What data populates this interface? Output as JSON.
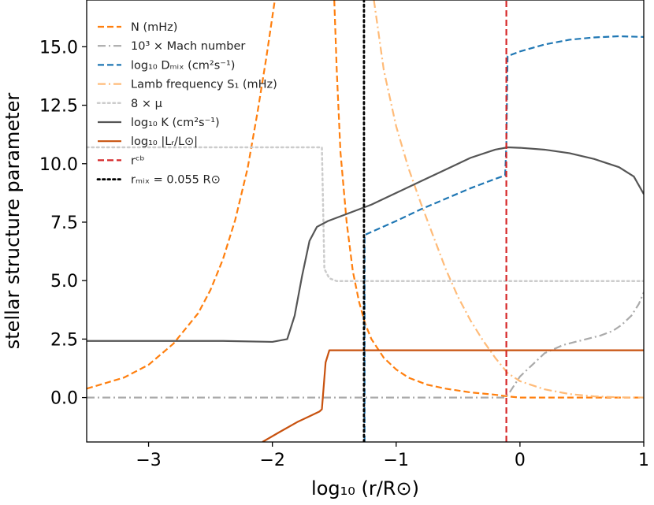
{
  "chart_data": {
    "type": "line",
    "xlabel": "log₁₀ (r/R⊙)",
    "ylabel": "stellar structure parameter",
    "xlim": [
      -3.5,
      1
    ],
    "ylim": [
      -1.9,
      17
    ],
    "xticks": [
      -3,
      -2,
      -1,
      0,
      1
    ],
    "xtick_labels": [
      "−3",
      "−2",
      "−1",
      "0",
      "1"
    ],
    "yticks": [
      0.0,
      2.5,
      5.0,
      7.5,
      10.0,
      12.5,
      15.0
    ],
    "ytick_labels": [
      "0.0",
      "2.5",
      "5.0",
      "7.5",
      "10.0",
      "12.5",
      "15.0"
    ],
    "legend_position": "top-left",
    "series": [
      {
        "name": "N (mHz)",
        "legend_label": "N (mHz)",
        "color": "#ff7f0e",
        "style": "dashed",
        "width": 2.2,
        "segments": [
          [
            [
              -3.5,
              0.38
            ],
            [
              -3.2,
              0.85
            ],
            [
              -3.0,
              1.4
            ],
            [
              -2.8,
              2.3
            ],
            [
              -2.6,
              3.6
            ],
            [
              -2.5,
              4.6
            ],
            [
              -2.4,
              5.9
            ],
            [
              -2.3,
              7.6
            ],
            [
              -2.2,
              9.8
            ],
            [
              -2.12,
              12.2
            ],
            [
              -2.05,
              14.5
            ],
            [
              -1.98,
              17.0
            ]
          ],
          [
            [
              -1.5,
              17.0
            ],
            [
              -1.48,
              14.0
            ],
            [
              -1.45,
              10.5
            ],
            [
              -1.4,
              7.5
            ],
            [
              -1.35,
              5.4
            ],
            [
              -1.3,
              4.1
            ],
            [
              -1.25,
              3.15
            ],
            [
              -1.2,
              2.5
            ],
            [
              -1.1,
              1.7
            ],
            [
              -1.0,
              1.2
            ],
            [
              -0.9,
              0.85
            ],
            [
              -0.75,
              0.55
            ],
            [
              -0.6,
              0.38
            ],
            [
              -0.4,
              0.22
            ],
            [
              -0.2,
              0.12
            ],
            [
              -0.1,
              0.05
            ],
            [
              0.0,
              0.0
            ],
            [
              1.0,
              0.0
            ]
          ]
        ]
      },
      {
        "name": "10^3 x Mach number",
        "legend_label": "10³ × Mach number",
        "color": "#aaaaaa",
        "style": "dashdot",
        "width": 2.2,
        "segments": [
          [
            [
              -3.5,
              0.0
            ],
            [
              -0.12,
              0.0
            ],
            [
              -0.08,
              0.25
            ],
            [
              0.0,
              0.9
            ],
            [
              0.1,
              1.4
            ],
            [
              0.2,
              1.9
            ],
            [
              0.35,
              2.25
            ],
            [
              0.5,
              2.45
            ],
            [
              0.65,
              2.65
            ],
            [
              0.75,
              2.85
            ],
            [
              0.82,
              3.1
            ],
            [
              0.9,
              3.5
            ],
            [
              0.96,
              4.0
            ],
            [
              1.0,
              4.5
            ]
          ]
        ]
      },
      {
        "name": "log10 Dmix (cm2 s-1)",
        "legend_label": "log₁₀ Dₘᵢₓ (cm²s⁻¹)",
        "color": "#1f77b4",
        "style": "dashed",
        "width": 2.2,
        "segments": [
          [
            [
              -1.255,
              -1.9
            ],
            [
              -1.255,
              6.95
            ],
            [
              -1.0,
              7.55
            ],
            [
              -0.8,
              8.05
            ],
            [
              -0.6,
              8.5
            ],
            [
              -0.4,
              8.95
            ],
            [
              -0.2,
              9.35
            ],
            [
              -0.12,
              9.5
            ],
            [
              -0.11,
              10.8
            ],
            [
              -0.1,
              14.6
            ],
            [
              0.0,
              14.8
            ],
            [
              0.2,
              15.1
            ],
            [
              0.4,
              15.3
            ],
            [
              0.6,
              15.4
            ],
            [
              0.8,
              15.45
            ],
            [
              1.0,
              15.42
            ]
          ]
        ]
      },
      {
        "name": "Lamb frequency S1 (mHz)",
        "legend_label": "Lamb frequency S₁ (mHz)",
        "color": "#ffbb78",
        "style": "dashdot",
        "width": 2.2,
        "segments": [
          [
            [
              -1.18,
              17.0
            ],
            [
              -1.1,
              14.0
            ],
            [
              -1.0,
              11.6
            ],
            [
              -0.9,
              9.8
            ],
            [
              -0.8,
              8.3
            ],
            [
              -0.7,
              6.9
            ],
            [
              -0.6,
              5.5
            ],
            [
              -0.5,
              4.3
            ],
            [
              -0.4,
              3.3
            ],
            [
              -0.3,
              2.45
            ],
            [
              -0.2,
              1.7
            ],
            [
              -0.1,
              1.05
            ],
            [
              0.0,
              0.7
            ],
            [
              0.2,
              0.35
            ],
            [
              0.4,
              0.15
            ],
            [
              0.6,
              0.05
            ],
            [
              0.8,
              0.01
            ],
            [
              1.0,
              0.0
            ]
          ]
        ]
      },
      {
        "name": "8 x mu",
        "legend_label": "8 × μ",
        "color": "#cccccc",
        "style": "dotted",
        "width": 2.5,
        "segments": [
          [
            [
              -3.5,
              10.7
            ],
            [
              -1.6,
              10.7
            ],
            [
              -1.58,
              5.5
            ],
            [
              -1.54,
              5.1
            ],
            [
              -1.48,
              4.98
            ],
            [
              1.0,
              4.98
            ]
          ]
        ]
      },
      {
        "name": "log10 K (cm2 s-1)",
        "legend_label": "log₁₀ K (cm²s⁻¹)",
        "color": "#555555",
        "style": "solid",
        "width": 2.2,
        "segments": [
          [
            [
              -3.5,
              2.42
            ],
            [
              -2.4,
              2.42
            ],
            [
              -2.0,
              2.38
            ],
            [
              -1.88,
              2.5
            ],
            [
              -1.82,
              3.5
            ],
            [
              -1.76,
              5.2
            ],
            [
              -1.7,
              6.7
            ],
            [
              -1.64,
              7.3
            ],
            [
              -1.55,
              7.55
            ],
            [
              -1.4,
              7.85
            ],
            [
              -1.2,
              8.25
            ],
            [
              -1.0,
              8.75
            ],
            [
              -0.8,
              9.25
            ],
            [
              -0.6,
              9.75
            ],
            [
              -0.4,
              10.25
            ],
            [
              -0.2,
              10.6
            ],
            [
              -0.1,
              10.7
            ],
            [
              0.0,
              10.68
            ],
            [
              0.2,
              10.6
            ],
            [
              0.4,
              10.45
            ],
            [
              0.6,
              10.2
            ],
            [
              0.8,
              9.85
            ],
            [
              0.92,
              9.45
            ],
            [
              1.0,
              8.7
            ]
          ]
        ]
      },
      {
        "name": "log10 |Lr/Lsun|",
        "legend_label": "log₁₀ |Lᵣ/L⊙|",
        "color": "#c8520f",
        "style": "solid",
        "width": 2.2,
        "segments": [
          [
            [
              -2.08,
              -1.9
            ],
            [
              -1.95,
              -1.5
            ],
            [
              -1.8,
              -1.05
            ],
            [
              -1.7,
              -0.8
            ],
            [
              -1.62,
              -0.6
            ],
            [
              -1.6,
              -0.5
            ],
            [
              -1.57,
              1.5
            ],
            [
              -1.54,
              2.02
            ],
            [
              1.0,
              2.02
            ]
          ]
        ]
      },
      {
        "name": "r_cb",
        "legend_label": "rᶜᵇ",
        "color": "#d62728",
        "style": "dashed",
        "width": 2.2,
        "segments": [
          [
            [
              -0.11,
              -1.9
            ],
            [
              -0.11,
              17.0
            ]
          ]
        ]
      },
      {
        "name": "r_mix = 0.055 Rsun",
        "legend_label": "rₘᵢₓ = 0.055 R⊙",
        "color": "#000000",
        "style": "dotted",
        "width": 2.8,
        "segments": [
          [
            [
              -1.26,
              -1.9
            ],
            [
              -1.26,
              17.0
            ]
          ]
        ]
      }
    ]
  }
}
